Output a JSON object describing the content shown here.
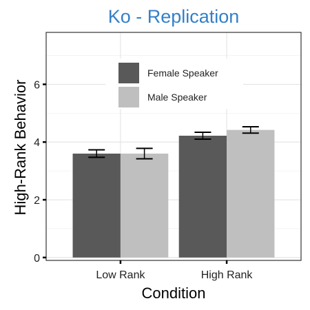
{
  "chart_data": {
    "type": "bar",
    "title": "Ko - Replication",
    "xlabel": "Condition",
    "ylabel": "High-Rank Behavior",
    "categories": [
      "Low Rank",
      "High Rank"
    ],
    "series": [
      {
        "name": "Female Speaker",
        "color": "#595959",
        "values": [
          3.6,
          4.22
        ],
        "error": [
          0.13,
          0.12
        ]
      },
      {
        "name": "Male Speaker",
        "color": "#bfbfbf",
        "values": [
          3.6,
          4.42
        ],
        "error": [
          0.18,
          0.11
        ]
      }
    ],
    "ylim": [
      -0.1,
      7.8
    ],
    "yticks": [
      0,
      2,
      4,
      6
    ],
    "grid": true,
    "legend_position": "top-left-inside"
  }
}
